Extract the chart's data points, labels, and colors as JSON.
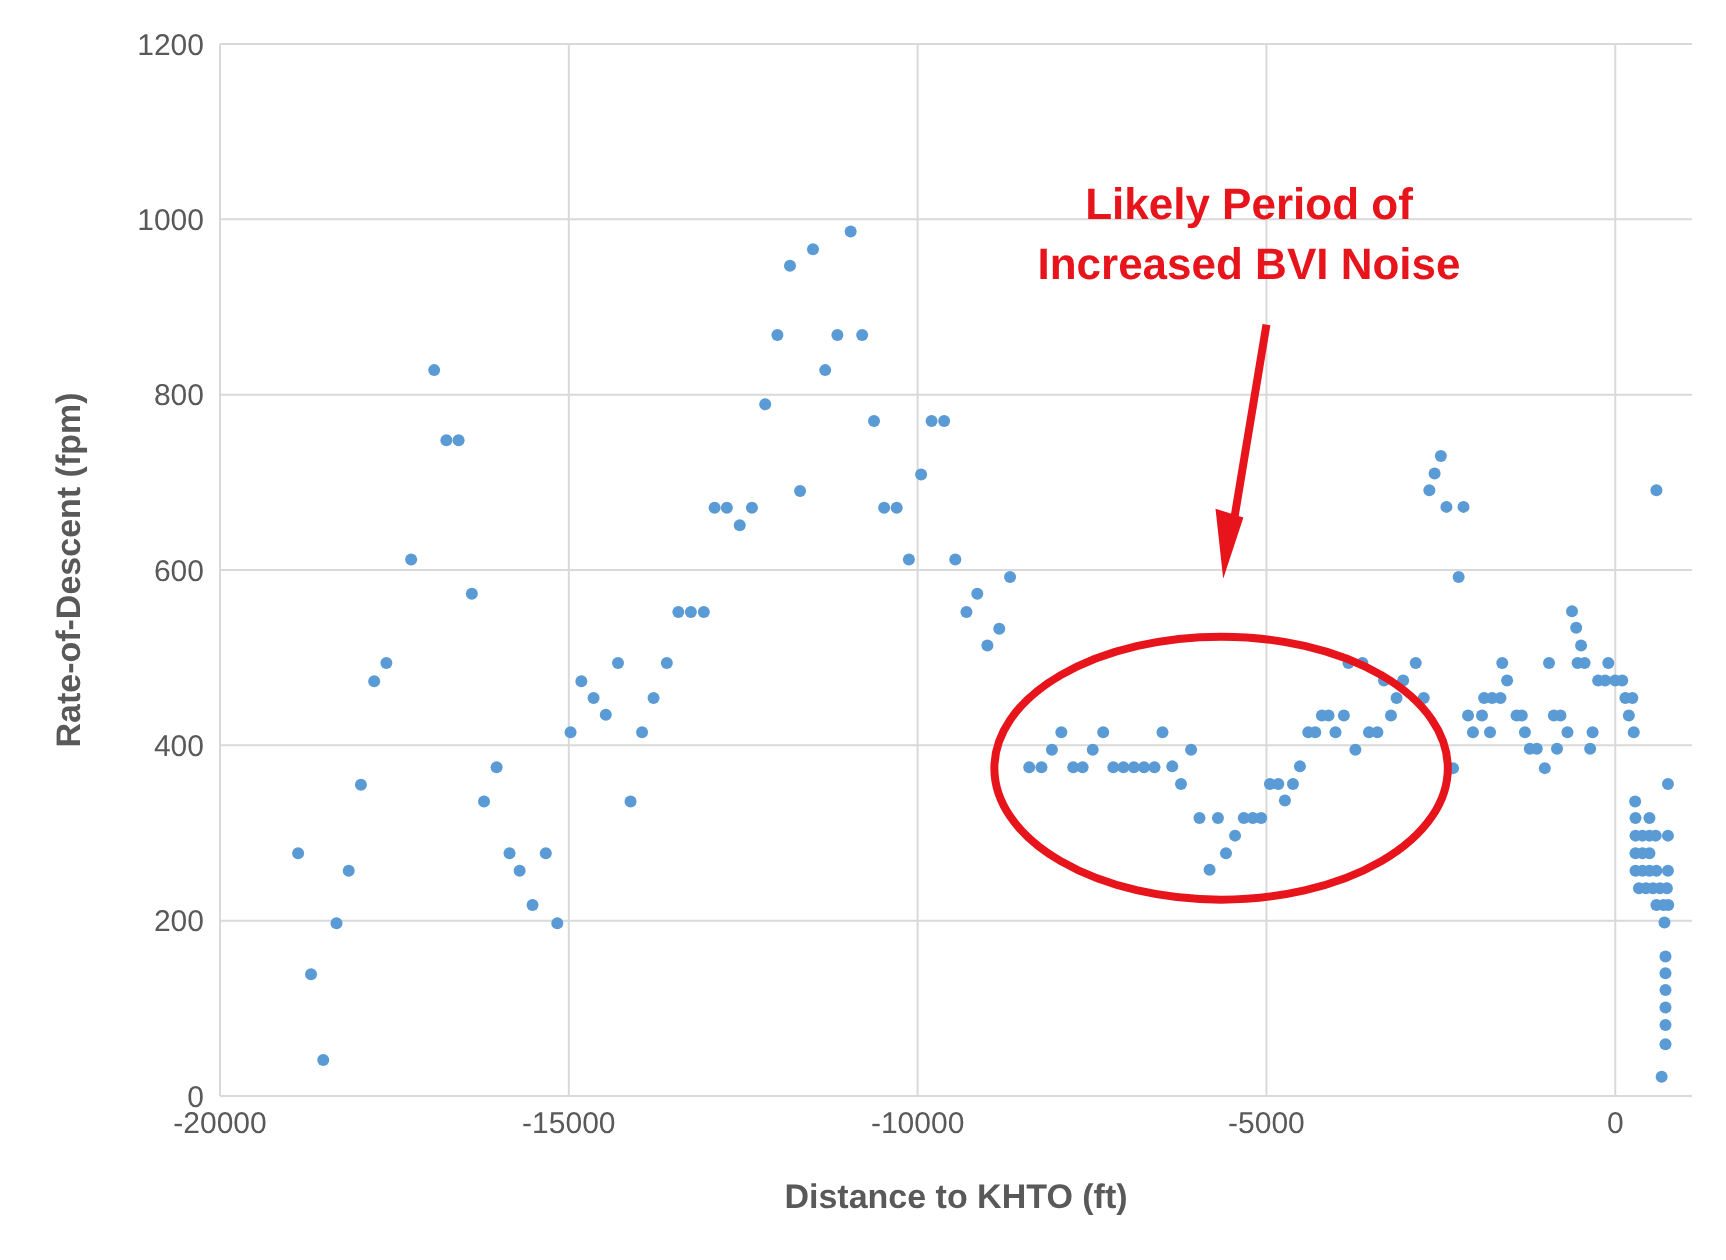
{
  "chart_data": {
    "type": "scatter",
    "xlabel": "Distance to KHTO (ft)",
    "ylabel": "Rate-of-Descent (fpm)",
    "annotations": [
      "Likely Period of Increased BVI Noise"
    ],
    "xlim": [
      -20000,
      1100
    ],
    "xticks": [
      -20000,
      -15000,
      -10000,
      -5000,
      0
    ],
    "ylim": [
      0,
      1200
    ],
    "yticks": [
      0,
      200,
      400,
      600,
      800,
      1000,
      1200
    ],
    "grid": true,
    "legend": false,
    "marker": "circle",
    "series": [
      {
        "color": "#5b9bd5",
        "x": [
          -18880,
          -18695,
          -18520,
          -18330,
          -18155,
          -17980,
          -17790,
          -17615,
          -17260,
          -16930,
          -16755,
          -16580,
          -16390,
          -16215,
          -16035,
          -15850,
          -15705,
          -15520,
          -15330,
          -15165,
          -14975,
          -14820,
          -14645,
          -14470,
          -14295,
          -14115,
          -13950,
          -13785,
          -13595,
          -13430,
          -13250,
          -13065,
          -12910,
          -12735,
          -12550,
          -12375,
          -12185,
          -12010,
          -11830,
          -11685,
          -11500,
          -11325,
          -11150,
          -10960,
          -10795,
          -10625,
          -10480,
          -10300,
          -10125,
          -9950,
          -9800,
          -9620,
          -9460,
          -9300,
          -9145,
          -9000,
          -8830,
          -8675,
          -8400,
          -8225,
          -8075,
          -7940,
          -7770,
          -7635,
          -7490,
          -7340,
          -7195,
          -7050,
          -6900,
          -6755,
          -6605,
          -6490,
          -6350,
          -6225,
          -6080,
          -5960,
          -5815,
          -5695,
          -5580,
          -5450,
          -5325,
          -5195,
          -5075,
          -4950,
          -4830,
          -4735,
          -4620,
          -4520,
          -4400,
          -4300,
          -4205,
          -4110,
          -4010,
          -3890,
          -3725,
          -3825,
          -3625,
          -3530,
          -3410,
          -3215,
          -3315,
          -3040,
          -3135,
          -2860,
          -2745,
          -2325,
          -2665,
          -2590,
          -2500,
          -2420,
          -2175,
          -2245,
          -2110,
          -1910,
          -2040,
          -1795,
          -1880,
          -1765,
          -1645,
          -1620,
          -1550,
          -1415,
          -1340,
          -1295,
          -1225,
          -1125,
          -1010,
          -950,
          -880,
          -785,
          -835,
          -685,
          -620,
          -560,
          -490,
          -540,
          -440,
          -360,
          -325,
          -245,
          -145,
          -100,
          0,
          100,
          145,
          245,
          195,
          265,
          590,
          755,
          285,
          290,
          490,
          290,
          390,
          490,
          580,
          755,
          290,
          390,
          490,
          290,
          390,
          490,
          590,
          755,
          340,
          440,
          540,
          640,
          740,
          590,
          690,
          760,
          705,
          720,
          720,
          720,
          720,
          720,
          720,
          665
        ],
        "values": [
          277,
          139,
          41,
          197,
          257,
          355,
          473,
          494,
          612,
          828,
          748,
          748,
          573,
          336,
          375,
          277,
          257,
          218,
          277,
          197,
          415,
          473,
          454,
          435,
          494,
          336,
          415,
          454,
          494,
          552,
          552,
          552,
          671,
          671,
          651,
          671,
          789,
          868,
          947,
          690,
          966,
          828,
          868,
          986,
          868,
          770,
          671,
          671,
          612,
          709,
          770,
          770,
          612,
          552,
          573,
          514,
          533,
          592,
          375,
          375,
          395,
          415,
          375,
          375,
          395,
          415,
          375,
          375,
          375,
          375,
          375,
          415,
          376,
          356,
          395,
          317,
          258,
          317,
          277,
          297,
          317,
          317,
          317,
          356,
          356,
          337,
          356,
          376,
          415,
          415,
          434,
          434,
          415,
          434,
          395,
          494,
          494,
          415,
          415,
          434,
          474,
          474,
          454,
          494,
          454,
          374,
          691,
          710,
          730,
          672,
          672,
          592,
          434,
          434,
          415,
          415,
          454,
          454,
          454,
          494,
          474,
          434,
          434,
          415,
          396,
          396,
          374,
          494,
          434,
          434,
          396,
          415,
          553,
          534,
          514,
          494,
          494,
          396,
          415,
          474,
          474,
          494,
          474,
          474,
          454,
          454,
          434,
          415,
          691,
          356,
          336,
          317,
          317,
          297,
          297,
          297,
          297,
          297,
          277,
          277,
          277,
          257,
          257,
          257,
          257,
          257,
          237,
          237,
          237,
          237,
          237,
          218,
          218,
          218,
          198,
          159,
          140,
          121,
          101,
          81,
          59,
          22
        ]
      }
    ]
  }
}
